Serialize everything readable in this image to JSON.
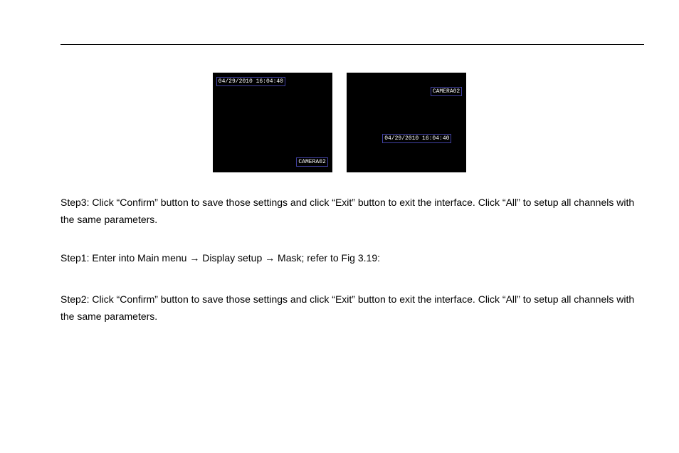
{
  "screens": {
    "screen1": {
      "timestamp": "04/29/2010  16:04:40",
      "camera": "CAMERA02"
    },
    "screen2": {
      "timestamp": "04/29/2010  16:04:40",
      "camera": "CAMERA02"
    }
  },
  "text": {
    "para1": "Step3: Click “Confirm” button to save those settings and click “Exit” button to exit the interface. Click “All” to setup all channels with the same parameters.",
    "para2_pre": "Step1: Enter into Main menu ",
    "para2_arrow1": "→",
    "para2_mid": " Display setup ",
    "para2_arrow2": "→",
    "para2_post": " Mask; refer to Fig 3.19:",
    "para3": "Step2: Click “Confirm” button to save those settings and click “Exit” button to exit the interface. Click “All” to setup all channels with the same parameters."
  },
  "colors": {
    "background": "#ffffff",
    "screen_bg": "#000000",
    "osd_border": "#4040a0",
    "osd_text": "#ffffff",
    "body_text": "#000000",
    "rule": "#000000"
  }
}
